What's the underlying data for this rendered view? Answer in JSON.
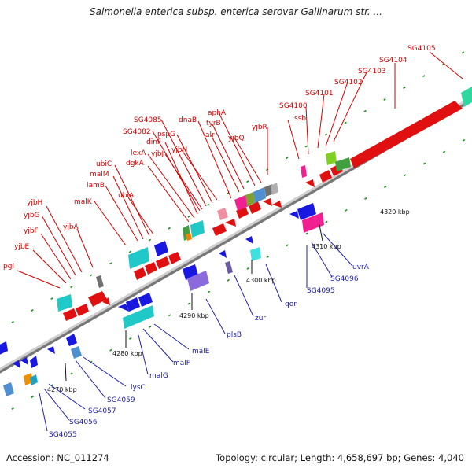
{
  "title": "Salmonella enterica subsp. enterica serovar Gallinarum str. ...",
  "footer": {
    "accession": "Accession: NC_011274",
    "summary": "Topology: circular; Length: 4,658,697 bp; Genes: 4,040"
  },
  "colors": {
    "forward_label": "#d40000",
    "reverse_label": "#2020b0"
  },
  "scale": [
    {
      "label": "4270 kbp"
    },
    {
      "label": "4280 kbp"
    },
    {
      "label": "4290 kbp"
    },
    {
      "label": "4300 kbp"
    },
    {
      "label": "4310 kbp"
    },
    {
      "label": "4320 kbp"
    }
  ],
  "top_labels": [
    {
      "name": "pgi"
    },
    {
      "name": "yjbE"
    },
    {
      "name": "yjbF"
    },
    {
      "name": "yjbG"
    },
    {
      "name": "yjbH"
    },
    {
      "name": "yjbA"
    },
    {
      "name": "malK"
    },
    {
      "name": "lamB"
    },
    {
      "name": "malM"
    },
    {
      "name": "ubiC"
    },
    {
      "name": "ubiA"
    },
    {
      "name": "dgkA"
    },
    {
      "name": "lexA"
    },
    {
      "name": "dinF"
    },
    {
      "name": "SG4082"
    },
    {
      "name": "yjbJ"
    },
    {
      "name": "SG4085"
    },
    {
      "name": "pspG"
    },
    {
      "name": "yjbN"
    },
    {
      "name": "dnaB"
    },
    {
      "name": "alr"
    },
    {
      "name": "tyrB"
    },
    {
      "name": "aphA"
    },
    {
      "name": "yjbQ"
    },
    {
      "name": "yjbR"
    },
    {
      "name": "ssb"
    },
    {
      "name": "SG4100"
    },
    {
      "name": "SG4101"
    },
    {
      "name": "SG4102"
    },
    {
      "name": "SG4103"
    },
    {
      "name": "SG4104"
    },
    {
      "name": "SG4105"
    }
  ],
  "bottom_labels": [
    {
      "name": "SG4055"
    },
    {
      "name": "SG4056"
    },
    {
      "name": "SG4057"
    },
    {
      "name": "SG4059"
    },
    {
      "name": "lysC"
    },
    {
      "name": "malG"
    },
    {
      "name": "malF"
    },
    {
      "name": "malE"
    },
    {
      "name": "plsB"
    },
    {
      "name": "zur"
    },
    {
      "name": "qor"
    },
    {
      "name": "SG4095"
    },
    {
      "name": "SG4096"
    },
    {
      "name": "uvrA"
    }
  ]
}
